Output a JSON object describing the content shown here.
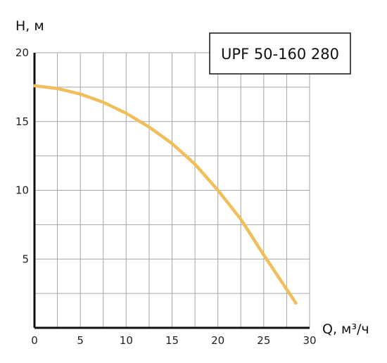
{
  "chart_data": {
    "type": "line",
    "title": "UPF 50-160 280",
    "xlabel": "Q, м³/ч",
    "ylabel": "H, м",
    "xlim": [
      0,
      30
    ],
    "ylim": [
      0,
      20
    ],
    "x_ticks": [
      "0",
      "5",
      "10",
      "15",
      "20",
      "25",
      "30"
    ],
    "y_ticks": [
      "5",
      "10",
      "15",
      "20"
    ],
    "grid": true,
    "series": [
      {
        "x": [
          0,
          2.5,
          5,
          7.5,
          10,
          12.5,
          15,
          17.5,
          20,
          22.5,
          25,
          27,
          28.5
        ],
        "values": [
          17.6,
          17.4,
          17.0,
          16.4,
          15.6,
          14.6,
          13.4,
          11.9,
          10.0,
          7.9,
          5.3,
          3.3,
          1.8
        ]
      }
    ],
    "colors": {
      "curve": "#f0be5a",
      "grid": "#a6a6a6",
      "axis": "#111111"
    }
  }
}
